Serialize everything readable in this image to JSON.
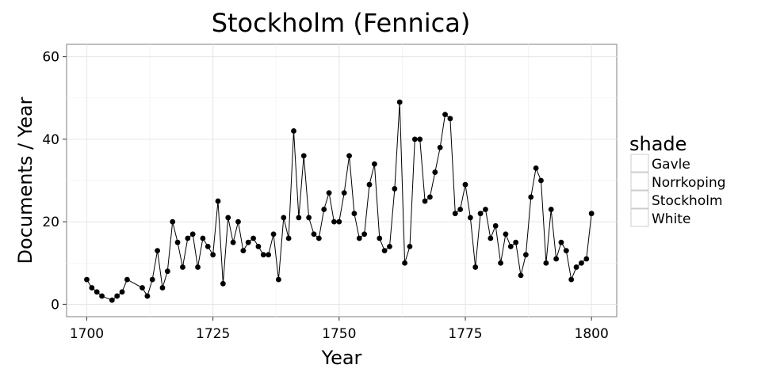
{
  "chart_data": {
    "type": "line",
    "title": "Stockholm (Fennica)",
    "xlabel": "Year",
    "ylabel": "Documents / Year",
    "xlim": [
      1696,
      1805
    ],
    "ylim": [
      -3,
      63
    ],
    "xticks": [
      1700,
      1725,
      1750,
      1775,
      1800
    ],
    "yticks": [
      0,
      20,
      40,
      60
    ],
    "grid": true,
    "legend": {
      "title": "shade",
      "position": "right",
      "entries": [
        "Gavle",
        "Norrkoping",
        "Stockholm",
        "White"
      ]
    },
    "series": [
      {
        "x": [
          1700,
          1701,
          1702,
          1703,
          1705,
          1706,
          1707,
          1708,
          1711,
          1712,
          1713,
          1714,
          1715,
          1716,
          1717,
          1718,
          1719,
          1720,
          1721,
          1722,
          1723,
          1724,
          1725,
          1726,
          1727,
          1728,
          1729,
          1730,
          1731,
          1732,
          1733,
          1734,
          1735,
          1736,
          1737,
          1738,
          1739,
          1740,
          1741,
          1742,
          1743,
          1744,
          1745,
          1746,
          1747,
          1748,
          1749,
          1750,
          1751,
          1752,
          1753,
          1754,
          1755,
          1756,
          1757,
          1758,
          1759,
          1760,
          1761,
          1762,
          1763,
          1764,
          1765,
          1766,
          1767,
          1768,
          1769,
          1770,
          1771,
          1772,
          1773,
          1774,
          1775,
          1776,
          1777,
          1778,
          1779,
          1780,
          1781,
          1782,
          1783,
          1784,
          1785,
          1786,
          1787,
          1788,
          1789,
          1790,
          1791,
          1792,
          1793,
          1794,
          1795,
          1796,
          1797,
          1798,
          1799,
          1800
        ],
        "y": [
          6,
          4,
          3,
          2,
          1,
          2,
          3,
          6,
          4,
          2,
          6,
          13,
          4,
          8,
          20,
          15,
          9,
          16,
          17,
          9,
          16,
          14,
          12,
          25,
          5,
          21,
          15,
          20,
          13,
          15,
          16,
          14,
          12,
          12,
          17,
          6,
          21,
          16,
          42,
          21,
          36,
          21,
          17,
          16,
          23,
          27,
          20,
          20,
          27,
          36,
          22,
          16,
          17,
          29,
          34,
          16,
          13,
          14,
          28,
          49,
          10,
          14,
          40,
          40,
          25,
          26,
          32,
          38,
          46,
          45,
          22,
          23,
          29,
          21,
          9,
          22,
          23,
          16,
          19,
          10,
          17,
          14,
          15,
          7,
          12,
          26,
          33,
          30,
          10,
          23,
          11,
          15,
          13,
          6,
          9,
          10,
          11,
          22
        ]
      }
    ]
  }
}
